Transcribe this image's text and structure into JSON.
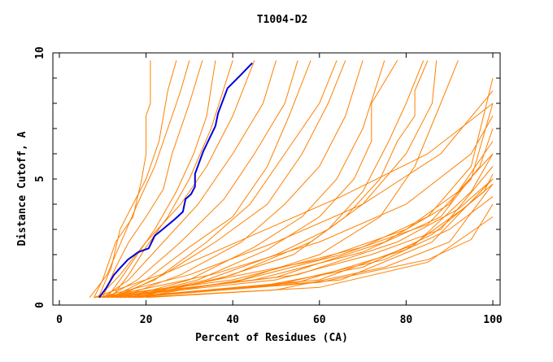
{
  "chart_data": {
    "type": "line",
    "title": "T1004-D2",
    "xlabel": "Percent of Residues (CA)",
    "ylabel": "Distance Cutoff, A",
    "xlim": [
      0,
      100
    ],
    "ylim": [
      0,
      10
    ],
    "xticks": [
      "0",
      "20",
      "40",
      "60",
      "80",
      "100"
    ],
    "yticks": [
      "0",
      "5",
      "10"
    ],
    "grid": false,
    "colors": {
      "highlight": "#0000dd",
      "others": "#ff8000"
    },
    "highlight_series": [
      [
        9.2,
        0.3
      ],
      [
        10.7,
        0.65
      ],
      [
        12.6,
        1.2
      ],
      [
        13.9,
        1.45
      ],
      [
        15.8,
        1.8
      ],
      [
        18.2,
        2.1
      ],
      [
        20.6,
        2.25
      ],
      [
        22,
        2.75
      ],
      [
        23.8,
        3.0
      ],
      [
        26.6,
        3.4
      ],
      [
        28.5,
        3.7
      ],
      [
        29.1,
        4.2
      ],
      [
        30.4,
        4.4
      ],
      [
        31.3,
        4.7
      ],
      [
        31.3,
        5.2
      ],
      [
        33.2,
        6.1
      ],
      [
        36,
        7.1
      ],
      [
        36.6,
        7.6
      ],
      [
        38.8,
        8.6
      ],
      [
        41.7,
        9.1
      ],
      [
        44.5,
        9.6
      ]
    ],
    "series": [
      [
        [
          8,
          0.3
        ],
        [
          10,
          1
        ],
        [
          13,
          2.5
        ],
        [
          17,
          3.5
        ],
        [
          19,
          5
        ],
        [
          20,
          6
        ],
        [
          20,
          7.5
        ],
        [
          21,
          8
        ],
        [
          21,
          9.7
        ]
      ],
      [
        [
          9,
          0.3
        ],
        [
          12,
          1.5
        ],
        [
          14,
          3
        ],
        [
          17,
          4
        ],
        [
          20,
          5
        ],
        [
          23,
          6.5
        ],
        [
          25,
          8.5
        ],
        [
          27,
          9.7
        ]
      ],
      [
        [
          7,
          0.3
        ],
        [
          11,
          1.2
        ],
        [
          15,
          2.8
        ],
        [
          18,
          4
        ],
        [
          22,
          5.5
        ],
        [
          25,
          7
        ],
        [
          28,
          8.5
        ],
        [
          30,
          9.7
        ]
      ],
      [
        [
          10,
          0.3
        ],
        [
          13,
          1.5
        ],
        [
          16,
          2.5
        ],
        [
          20,
          3.5
        ],
        [
          24,
          4.6
        ],
        [
          26,
          6
        ],
        [
          30,
          8
        ],
        [
          33,
          9.7
        ]
      ],
      [
        [
          11,
          0.3
        ],
        [
          14,
          1
        ],
        [
          18,
          2
        ],
        [
          22,
          3
        ],
        [
          27,
          4.5
        ],
        [
          31,
          6
        ],
        [
          34,
          7.5
        ],
        [
          36,
          9.7
        ]
      ],
      [
        [
          12,
          0.3
        ],
        [
          16,
          1.2
        ],
        [
          20,
          2.3
        ],
        [
          25,
          3.5
        ],
        [
          30,
          5
        ],
        [
          35,
          7
        ],
        [
          40,
          9.7
        ]
      ],
      [
        [
          9,
          0.3
        ],
        [
          14,
          1.2
        ],
        [
          20,
          2.5
        ],
        [
          28,
          4
        ],
        [
          34,
          5.5
        ],
        [
          40,
          7.5
        ],
        [
          45,
          9.7
        ]
      ],
      [
        [
          10,
          0.3
        ],
        [
          16,
          1
        ],
        [
          24,
          2.5
        ],
        [
          32,
          4
        ],
        [
          40,
          6
        ],
        [
          47,
          8
        ],
        [
          50,
          9.7
        ]
      ],
      [
        [
          11,
          0.3
        ],
        [
          18,
          1
        ],
        [
          28,
          2.5
        ],
        [
          38,
          4.2
        ],
        [
          45,
          6
        ],
        [
          52,
          8
        ],
        [
          55,
          9.7
        ]
      ],
      [
        [
          12,
          0.3
        ],
        [
          20,
          1
        ],
        [
          30,
          2.3
        ],
        [
          40,
          3.5
        ],
        [
          48,
          5.5
        ],
        [
          53,
          7.5
        ],
        [
          58,
          9.7
        ]
      ],
      [
        [
          12,
          0.3
        ],
        [
          22,
          1
        ],
        [
          34,
          2.5
        ],
        [
          44,
          4
        ],
        [
          52,
          6
        ],
        [
          60,
          8
        ],
        [
          64,
          9.7
        ]
      ],
      [
        [
          13,
          0.3
        ],
        [
          24,
          1.2
        ],
        [
          36,
          2.5
        ],
        [
          48,
          4
        ],
        [
          56,
          6
        ],
        [
          62,
          8
        ],
        [
          66,
          9.7
        ]
      ],
      [
        [
          14,
          0.3
        ],
        [
          28,
          1.2
        ],
        [
          42,
          2.5
        ],
        [
          52,
          4
        ],
        [
          60,
          5.5
        ],
        [
          66,
          7.5
        ],
        [
          70,
          9.7
        ]
      ],
      [
        [
          15,
          0.3
        ],
        [
          30,
          1
        ],
        [
          45,
          2.3
        ],
        [
          56,
          3.5
        ],
        [
          64,
          5
        ],
        [
          70,
          7
        ],
        [
          75,
          9.7
        ]
      ],
      [
        [
          16,
          0.3
        ],
        [
          32,
          1
        ],
        [
          48,
          2.2
        ],
        [
          60,
          3.5
        ],
        [
          68,
          5
        ],
        [
          72,
          6.5
        ],
        [
          72,
          8
        ],
        [
          78,
          9.7
        ]
      ],
      [
        [
          16,
          0.3
        ],
        [
          34,
          1
        ],
        [
          50,
          2
        ],
        [
          62,
          3
        ],
        [
          70,
          4.5
        ],
        [
          76,
          6.5
        ],
        [
          80,
          8
        ],
        [
          84,
          9.7
        ]
      ],
      [
        [
          17,
          0.3
        ],
        [
          36,
          1
        ],
        [
          54,
          2
        ],
        [
          66,
          3.5
        ],
        [
          74,
          5
        ],
        [
          78,
          6.5
        ],
        [
          82,
          7.5
        ],
        [
          82,
          8.5
        ],
        [
          85,
          9.7
        ]
      ],
      [
        [
          18,
          0.3
        ],
        [
          40,
          1.2
        ],
        [
          58,
          2.5
        ],
        [
          70,
          4
        ],
        [
          80,
          6
        ],
        [
          86,
          8
        ],
        [
          87,
          9.7
        ]
      ],
      [
        [
          18,
          0.3
        ],
        [
          42,
          1
        ],
        [
          60,
          2
        ],
        [
          74,
          3.5
        ],
        [
          82,
          5.5
        ],
        [
          88,
          8
        ],
        [
          92,
          9.7
        ]
      ],
      [
        [
          8,
          0.3
        ],
        [
          30,
          0.8
        ],
        [
          60,
          1.8
        ],
        [
          80,
          3
        ],
        [
          92,
          4.5
        ],
        [
          100,
          6
        ]
      ],
      [
        [
          9,
          0.3
        ],
        [
          40,
          1
        ],
        [
          70,
          2.3
        ],
        [
          85,
          3.5
        ],
        [
          95,
          5.5
        ],
        [
          100,
          9
        ]
      ],
      [
        [
          10,
          0.3
        ],
        [
          40,
          0.9
        ],
        [
          65,
          2
        ],
        [
          85,
          3.2
        ],
        [
          95,
          5
        ],
        [
          100,
          8
        ]
      ],
      [
        [
          10,
          0.3
        ],
        [
          45,
          1
        ],
        [
          70,
          2.1
        ],
        [
          88,
          3.5
        ],
        [
          97,
          5.5
        ],
        [
          100,
          7
        ]
      ],
      [
        [
          11,
          0.3
        ],
        [
          50,
          1.1
        ],
        [
          75,
          2.5
        ],
        [
          90,
          4
        ],
        [
          100,
          6.5
        ]
      ],
      [
        [
          12,
          0.3
        ],
        [
          50,
          1
        ],
        [
          72,
          2
        ],
        [
          88,
          3
        ],
        [
          100,
          5.5
        ]
      ],
      [
        [
          12,
          0.3
        ],
        [
          55,
          1.2
        ],
        [
          78,
          2.5
        ],
        [
          92,
          3.8
        ],
        [
          100,
          5
        ]
      ],
      [
        [
          13,
          0.3
        ],
        [
          45,
          0.7
        ],
        [
          70,
          1.5
        ],
        [
          86,
          2.8
        ],
        [
          98,
          4.5
        ],
        [
          100,
          5.2
        ]
      ],
      [
        [
          14,
          0.3
        ],
        [
          55,
          0.9
        ],
        [
          80,
          2.2
        ],
        [
          93,
          3.8
        ],
        [
          100,
          4.8
        ]
      ],
      [
        [
          15,
          0.3
        ],
        [
          60,
          1
        ],
        [
          82,
          2.4
        ],
        [
          95,
          4.5
        ],
        [
          100,
          6
        ]
      ],
      [
        [
          15,
          0.3
        ],
        [
          50,
          0.8
        ],
        [
          75,
          1.8
        ],
        [
          90,
          3
        ],
        [
          100,
          4.3
        ]
      ],
      [
        [
          16,
          0.3
        ],
        [
          60,
          0.9
        ],
        [
          85,
          1.8
        ],
        [
          95,
          2.6
        ],
        [
          100,
          4
        ]
      ],
      [
        [
          17,
          0.3
        ],
        [
          65,
          1
        ],
        [
          86,
          2.5
        ],
        [
          100,
          5
        ]
      ],
      [
        [
          18,
          0.3
        ],
        [
          60,
          0.7
        ],
        [
          85,
          1.7
        ],
        [
          100,
          3.5
        ]
      ],
      [
        [
          10,
          0.3
        ],
        [
          35,
          1.2
        ],
        [
          60,
          2.5
        ],
        [
          80,
          4
        ],
        [
          95,
          6
        ],
        [
          100,
          7.5
        ]
      ],
      [
        [
          9,
          0.3
        ],
        [
          30,
          1.2
        ],
        [
          50,
          2.5
        ],
        [
          70,
          4
        ],
        [
          88,
          6
        ],
        [
          100,
          8.5
        ]
      ],
      [
        [
          8,
          0.3
        ],
        [
          25,
          1.3
        ],
        [
          45,
          2.8
        ],
        [
          65,
          4.3
        ],
        [
          85,
          6
        ],
        [
          100,
          8
        ]
      ],
      [
        [
          20,
          0.3
        ],
        [
          50,
          0.6
        ],
        [
          75,
          1.5
        ],
        [
          90,
          2.5
        ],
        [
          100,
          4.8
        ]
      ]
    ]
  }
}
